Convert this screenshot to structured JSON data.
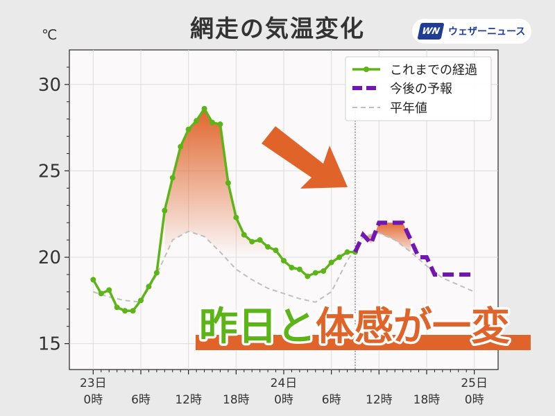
{
  "title": "網走の気温変化",
  "unit": "℃",
  "brand": {
    "mark": "WN",
    "name": "ウェザーニュース"
  },
  "headline": "昨日と体感が一変",
  "colors": {
    "observed": "#5cb516",
    "forecast": "#7115b3",
    "normal": "#bfbfbf",
    "fill": "#e0642a",
    "headline_green": "#5cb516",
    "headline_orange": "#e0642a",
    "plot_bg": "#fbf9fa",
    "grid": "#dedcdc",
    "axis_text": "#333333"
  },
  "chart_data": {
    "type": "line",
    "title": "網走の気温変化",
    "ylabel": "℃",
    "xlim": [
      -1.5,
      25.5
    ],
    "ylim": [
      13.5,
      32
    ],
    "y_ticks": [
      15,
      20,
      25,
      30
    ],
    "x_ticks": [
      {
        "x": 0,
        "label": [
          "23日",
          "0時"
        ]
      },
      {
        "x": 3,
        "label": [
          "",
          "6時"
        ]
      },
      {
        "x": 6,
        "label": [
          "",
          "12時"
        ]
      },
      {
        "x": 9,
        "label": [
          "",
          "18時"
        ]
      },
      {
        "x": 12,
        "label": [
          "24日",
          "0時"
        ]
      },
      {
        "x": 15,
        "label": [
          "",
          "6時"
        ]
      },
      {
        "x": 18,
        "label": [
          "",
          "12時"
        ]
      },
      {
        "x": 21,
        "label": [
          "",
          "18時"
        ]
      },
      {
        "x": 24,
        "label": [
          "25日",
          "0時"
        ]
      }
    ],
    "x_unit_note": "x in 2-hour steps from 23日 0時",
    "now_x": 16.5,
    "grid": true,
    "legend_position": "top-right",
    "series": [
      {
        "name": "これまでの経過",
        "style": "solid-markers",
        "x": [
          0,
          0.5,
          1,
          1.5,
          2,
          2.5,
          3,
          3.5,
          4,
          4.5,
          5,
          5.5,
          6,
          6.5,
          7,
          7.5,
          8,
          8.5,
          9,
          9.5,
          10,
          10.5,
          11,
          11.5,
          12,
          12.5,
          13,
          13.5,
          14,
          14.5,
          15,
          15.5,
          16,
          16.5
        ],
        "y": [
          18.7,
          17.9,
          18.1,
          17.1,
          16.9,
          16.9,
          17.5,
          18.3,
          19.1,
          22.7,
          24.6,
          26.4,
          27.4,
          27.9,
          28.6,
          27.8,
          27.7,
          24.3,
          22.3,
          21.3,
          20.9,
          21.0,
          20.6,
          20.4,
          19.8,
          19.4,
          19.3,
          18.9,
          19.1,
          19.2,
          19.7,
          20.0,
          20.3,
          20.3
        ]
      },
      {
        "name": "今後の予報",
        "style": "dashed-thick",
        "x": [
          16.5,
          17,
          17.5,
          18,
          18.5,
          19,
          19.5,
          20,
          20.5,
          21,
          21.5,
          22,
          22.5,
          23,
          23.5,
          24
        ],
        "y": [
          20.3,
          21.3,
          20.8,
          22.0,
          22.0,
          22.0,
          22.0,
          21.0,
          20.0,
          20.0,
          19.0,
          19.0,
          19.0,
          19.0,
          19.0,
          19.0
        ]
      },
      {
        "name": "平年値",
        "style": "dashed-thin",
        "x": [
          0,
          1,
          2,
          3,
          4,
          5,
          6,
          7,
          8,
          9,
          10,
          11,
          12,
          13,
          14,
          15,
          16,
          17,
          18,
          19,
          20,
          21,
          22,
          23,
          24
        ],
        "y": [
          18.0,
          17.7,
          17.5,
          17.4,
          19.0,
          21.0,
          21.5,
          21.2,
          20.3,
          19.3,
          18.7,
          18.2,
          17.9,
          17.6,
          17.4,
          18.0,
          19.8,
          21.2,
          21.4,
          21.0,
          20.3,
          19.5,
          18.8,
          18.4,
          18.0
        ]
      }
    ]
  }
}
